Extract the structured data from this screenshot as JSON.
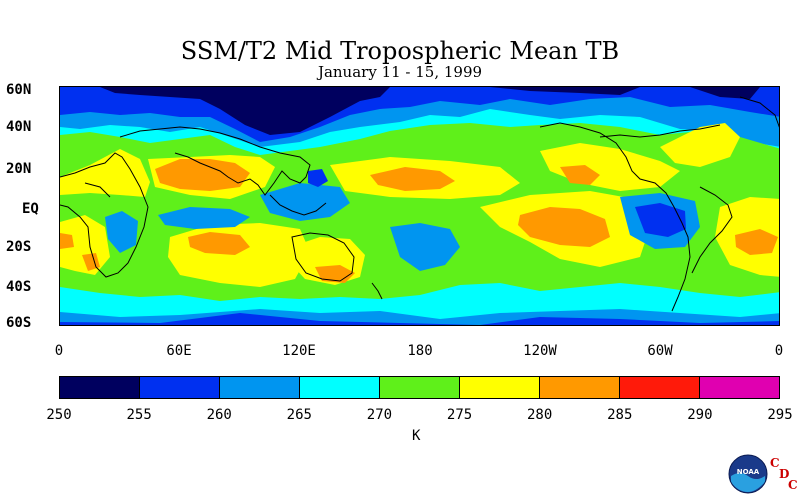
{
  "title": "SSM/T2 Mid Tropospheric Mean TB",
  "subtitle": "January 11 - 15, 1999",
  "map": {
    "lat_labels": [
      "60N",
      "40N",
      "20N",
      "EQ",
      "20S",
      "40S",
      "60S"
    ],
    "lon_labels": [
      "0",
      "60E",
      "120E",
      "180",
      "120W",
      "60W",
      "0"
    ]
  },
  "colorbar": {
    "unit": "K",
    "ticks": [
      "250",
      "255",
      "260",
      "265",
      "270",
      "275",
      "280",
      "285",
      "290",
      "295"
    ],
    "colors": [
      "#00005f",
      "#0030f0",
      "#0095f0",
      "#00ffff",
      "#5ff01a",
      "#ffff00",
      "#ff9900",
      "#ff1a0a",
      "#e000b0"
    ]
  },
  "logo": {
    "noaa_text": "NOAA",
    "cdc_letters": [
      "C",
      "D",
      "C"
    ]
  }
}
